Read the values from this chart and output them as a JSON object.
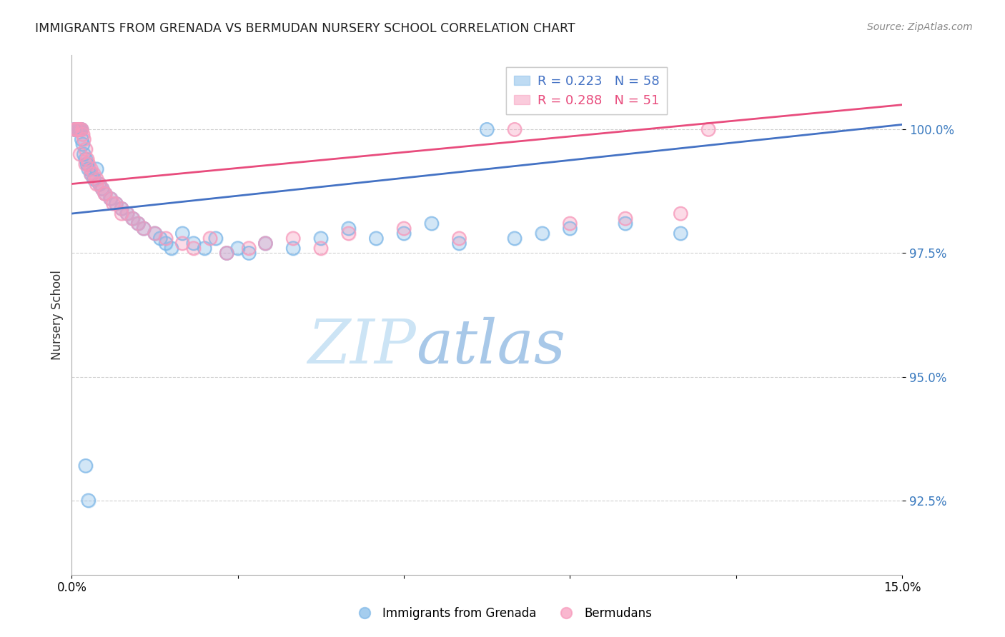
{
  "title": "IMMIGRANTS FROM GRENADA VS BERMUDAN NURSERY SCHOOL CORRELATION CHART",
  "source": "Source: ZipAtlas.com",
  "ylabel": "Nursery School",
  "ytick_values": [
    92.5,
    95.0,
    97.5,
    100.0
  ],
  "xmin": 0.0,
  "xmax": 15.0,
  "ymin": 91.0,
  "ymax": 101.5,
  "blue_color": "#7fb8e8",
  "pink_color": "#f799bb",
  "trendline_blue_color": "#4472c4",
  "trendline_pink_color": "#e84c7d",
  "watermark_zip": "ZIP",
  "watermark_atlas": "atlas",
  "legend_label_blue": "Immigrants from Grenada",
  "legend_label_pink": "Bermudans",
  "blue_trend_x0": 0.0,
  "blue_trend_y0": 98.3,
  "blue_trend_x1": 15.0,
  "blue_trend_y1": 100.1,
  "pink_trend_x0": 0.0,
  "pink_trend_y0": 98.9,
  "pink_trend_x1": 15.0,
  "pink_trend_y1": 100.5,
  "grid_color": "#d0d0d0",
  "background_color": "#ffffff",
  "blue_scatter_x": [
    0.05,
    0.07,
    0.08,
    0.09,
    0.1,
    0.11,
    0.12,
    0.13,
    0.14,
    0.15,
    0.16,
    0.17,
    0.18,
    0.2,
    0.22,
    0.25,
    0.28,
    0.3,
    0.35,
    0.4,
    0.45,
    0.5,
    0.55,
    0.6,
    0.7,
    0.8,
    0.9,
    1.0,
    1.1,
    1.2,
    1.3,
    1.5,
    1.6,
    1.7,
    1.8,
    2.0,
    2.2,
    2.4,
    2.6,
    2.8,
    3.0,
    3.2,
    3.5,
    4.0,
    4.5,
    5.0,
    5.5,
    6.0,
    6.5,
    7.0,
    7.5,
    8.0,
    8.5,
    9.0,
    10.0,
    11.0,
    0.25,
    0.3
  ],
  "blue_scatter_y": [
    100.0,
    100.0,
    100.0,
    100.0,
    100.0,
    100.0,
    100.0,
    100.0,
    100.0,
    100.0,
    100.0,
    100.0,
    99.8,
    99.7,
    99.5,
    99.4,
    99.3,
    99.2,
    99.1,
    99.0,
    99.2,
    98.9,
    98.8,
    98.7,
    98.6,
    98.5,
    98.4,
    98.3,
    98.2,
    98.1,
    98.0,
    97.9,
    97.8,
    97.7,
    97.6,
    97.9,
    97.7,
    97.6,
    97.8,
    97.5,
    97.6,
    97.5,
    97.7,
    97.6,
    97.8,
    98.0,
    97.8,
    97.9,
    98.1,
    97.7,
    100.0,
    97.8,
    97.9,
    98.0,
    98.1,
    97.9,
    93.2,
    92.5
  ],
  "pink_scatter_x": [
    0.05,
    0.07,
    0.08,
    0.1,
    0.12,
    0.14,
    0.16,
    0.18,
    0.2,
    0.22,
    0.25,
    0.28,
    0.3,
    0.35,
    0.4,
    0.45,
    0.5,
    0.55,
    0.6,
    0.7,
    0.8,
    0.9,
    1.0,
    1.1,
    1.2,
    1.3,
    1.5,
    1.7,
    2.0,
    2.2,
    2.5,
    2.8,
    3.2,
    3.5,
    4.0,
    4.5,
    5.0,
    6.0,
    7.0,
    8.0,
    9.0,
    10.0,
    11.0,
    11.5,
    0.15,
    0.25,
    0.35,
    0.45,
    0.6,
    0.75,
    0.9
  ],
  "pink_scatter_y": [
    100.0,
    100.0,
    100.0,
    100.0,
    100.0,
    100.0,
    100.0,
    100.0,
    99.9,
    99.8,
    99.6,
    99.4,
    99.3,
    99.2,
    99.1,
    99.0,
    98.9,
    98.8,
    98.7,
    98.6,
    98.5,
    98.4,
    98.3,
    98.2,
    98.1,
    98.0,
    97.9,
    97.8,
    97.7,
    97.6,
    97.8,
    97.5,
    97.6,
    97.7,
    97.8,
    97.6,
    97.9,
    98.0,
    97.8,
    100.0,
    98.1,
    98.2,
    98.3,
    100.0,
    99.5,
    99.3,
    99.1,
    98.9,
    98.7,
    98.5,
    98.3
  ]
}
